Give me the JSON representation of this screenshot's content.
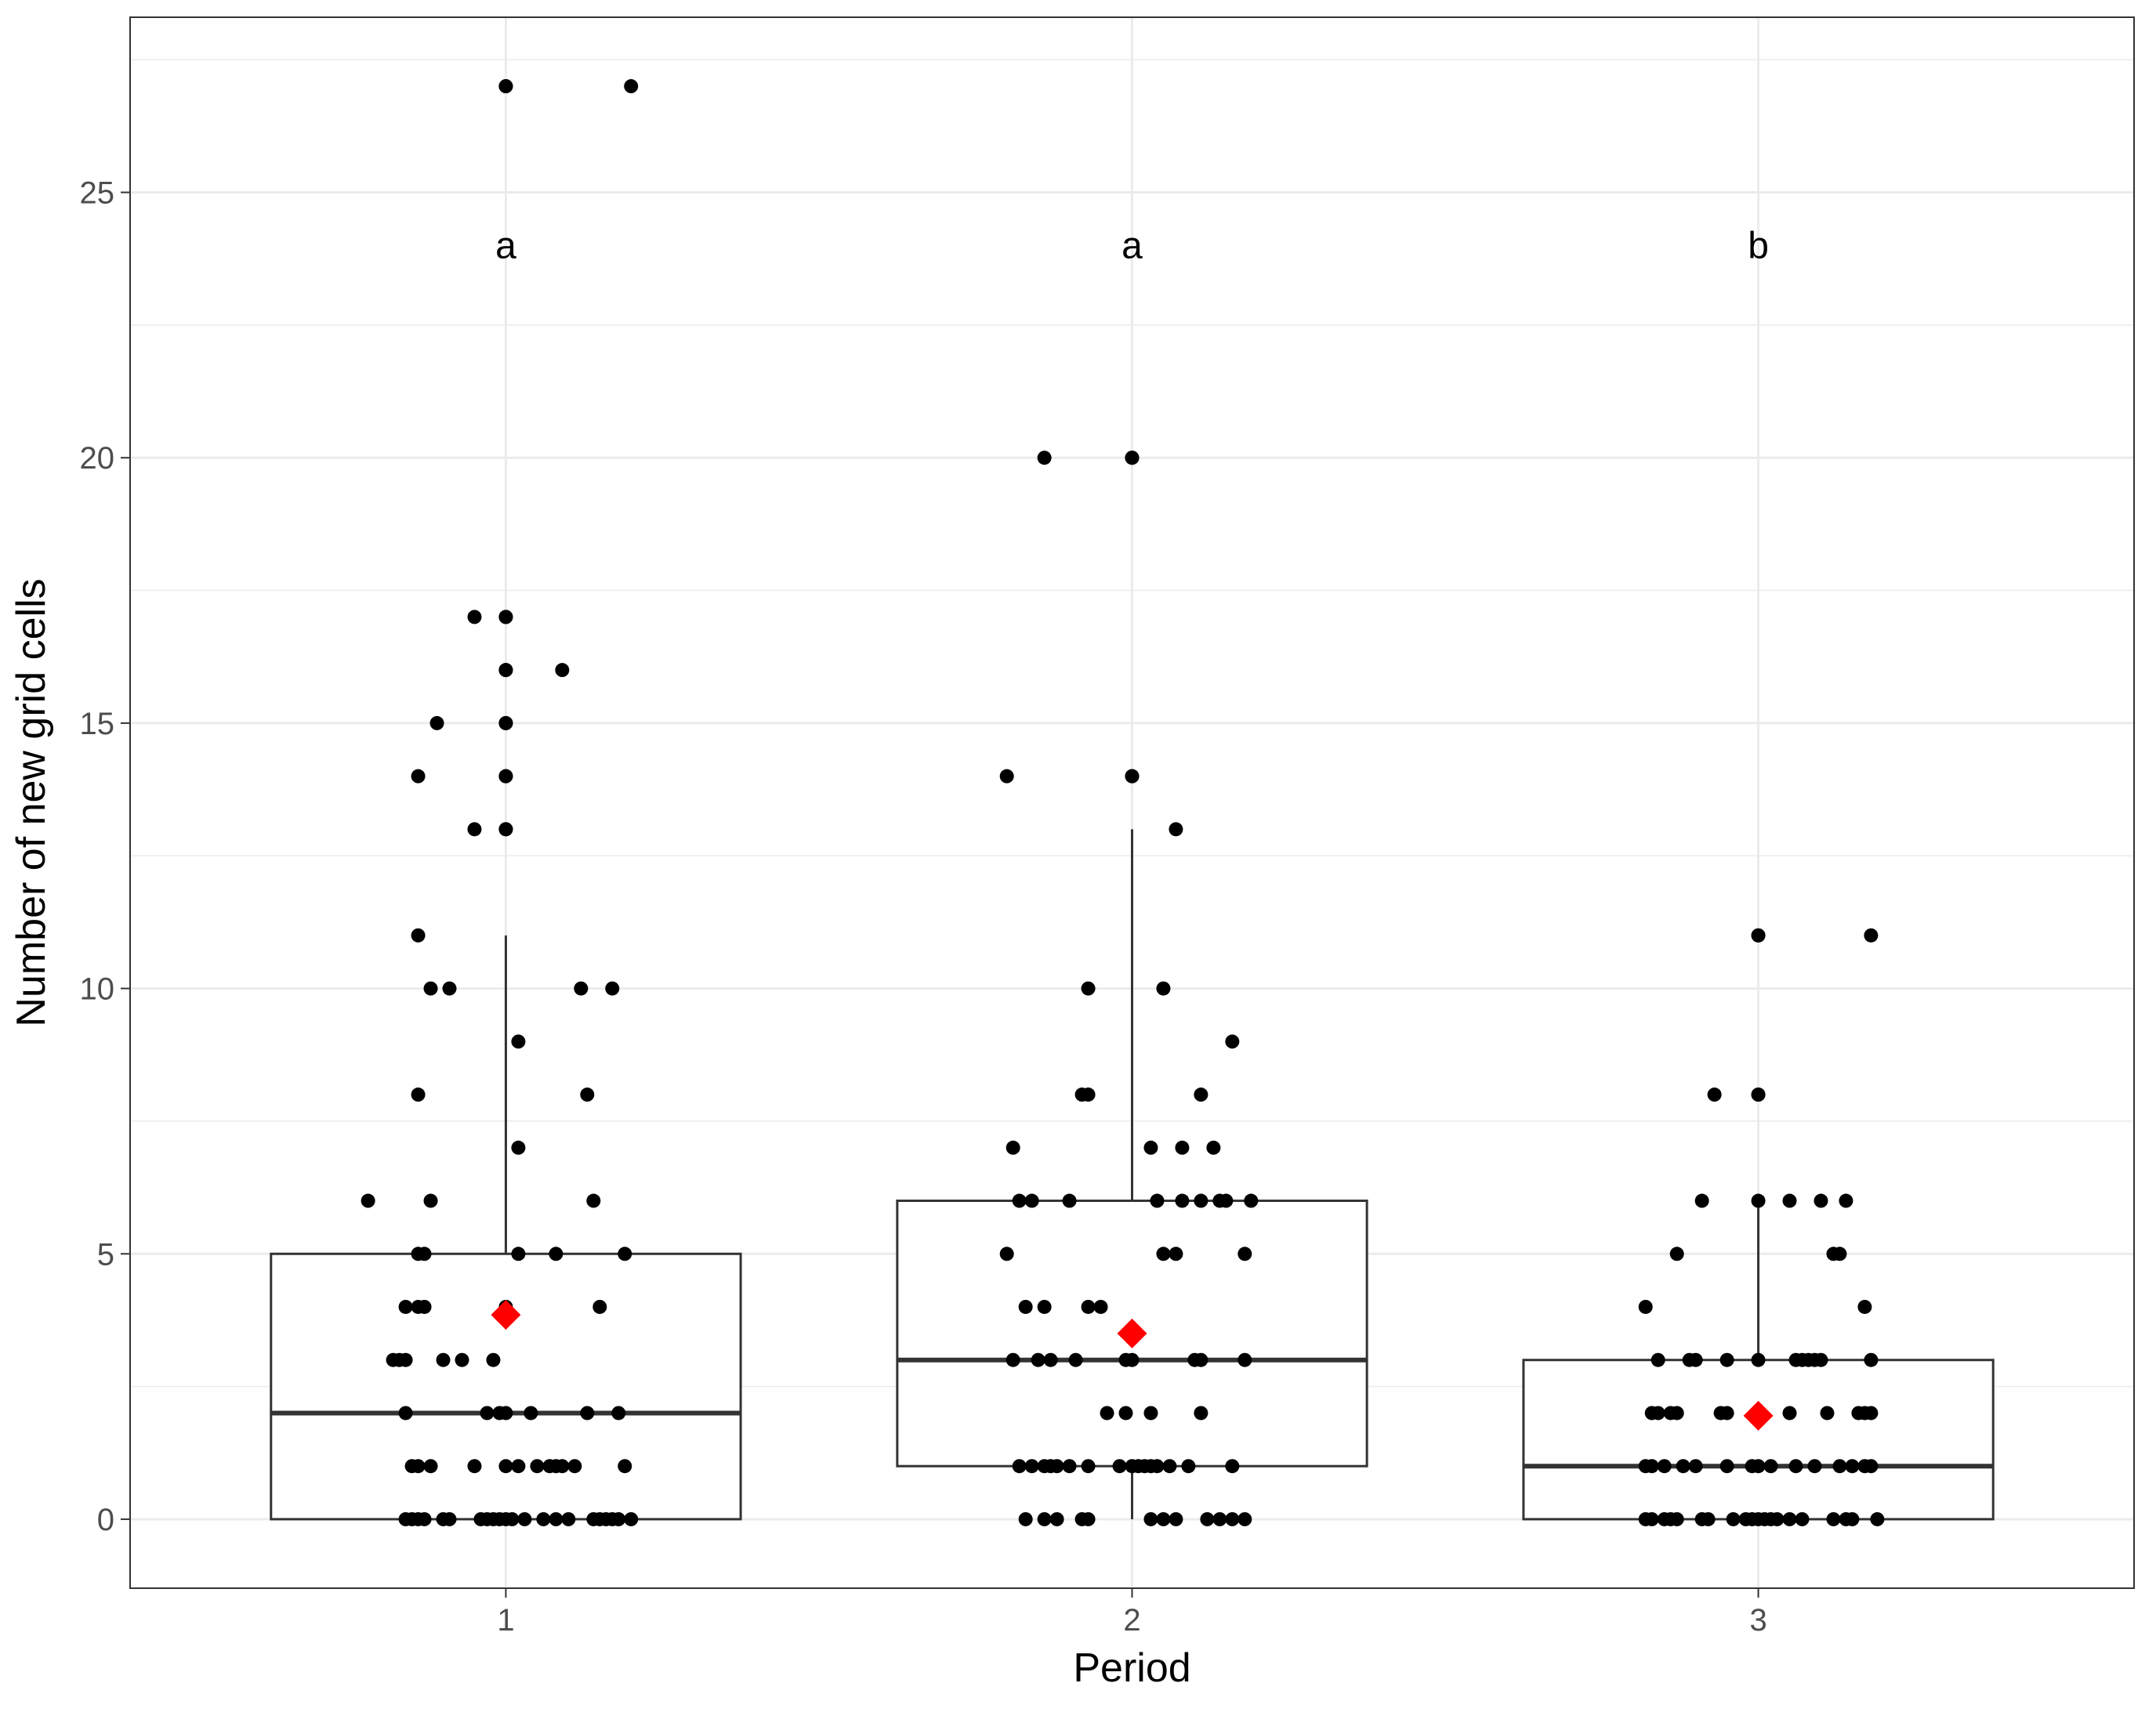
{
  "chart_data": {
    "type": "box",
    "title": "",
    "xlabel": "Period",
    "ylabel": "Number of new grid cells",
    "categories": [
      "1",
      "2",
      "3"
    ],
    "y_ticks": [
      0,
      5,
      10,
      15,
      20,
      25
    ],
    "ylim": [
      -1.3,
      28.3
    ],
    "grid": true,
    "legend": "none",
    "significance_letters": [
      "a",
      "a",
      "b"
    ],
    "letter_y": 24,
    "colors": {
      "mean_marker": "#ff0000",
      "point": "#000000",
      "box_line": "#333333",
      "grid": "#ebebeb"
    },
    "boxes": [
      {
        "category": "1",
        "whisker_low": 0,
        "q1": 0,
        "median": 2,
        "q3": 5,
        "whisker_high": 11,
        "mean": 3.85,
        "outliers": [
          13,
          13,
          14,
          14,
          15,
          15,
          16,
          16,
          17,
          17,
          27,
          27
        ]
      },
      {
        "category": "2",
        "whisker_low": 0,
        "q1": 1,
        "median": 3,
        "q3": 6,
        "whisker_high": 13,
        "mean": 3.5,
        "outliers": [
          14,
          14,
          20,
          20
        ]
      },
      {
        "category": "3",
        "whisker_low": 0,
        "q1": 0,
        "median": 1,
        "q3": 3,
        "whisker_high": 6,
        "mean": 1.95,
        "outliers": [
          8,
          8,
          11,
          11
        ]
      }
    ],
    "points": [
      {
        "x": 1.92,
        "y": 0
      },
      {
        "x": 0.84,
        "y": 0
      },
      {
        "x": 0.85,
        "y": 0
      },
      {
        "x": 0.86,
        "y": 0
      },
      {
        "x": 0.87,
        "y": 0
      },
      {
        "x": 0.9,
        "y": 0
      },
      {
        "x": 0.91,
        "y": 0
      },
      {
        "x": 0.96,
        "y": 0
      },
      {
        "x": 0.97,
        "y": 0
      },
      {
        "x": 0.98,
        "y": 0
      },
      {
        "x": 0.99,
        "y": 0
      },
      {
        "x": 1.0,
        "y": 0
      },
      {
        "x": 1.01,
        "y": 0
      },
      {
        "x": 1.03,
        "y": 0
      },
      {
        "x": 1.06,
        "y": 0
      },
      {
        "x": 1.08,
        "y": 0
      },
      {
        "x": 1.1,
        "y": 0
      },
      {
        "x": 1.14,
        "y": 0
      },
      {
        "x": 1.15,
        "y": 0
      },
      {
        "x": 1.16,
        "y": 0
      },
      {
        "x": 1.17,
        "y": 0
      },
      {
        "x": 1.18,
        "y": 0
      },
      {
        "x": 1.2,
        "y": 0
      },
      {
        "x": 0.85,
        "y": 1
      },
      {
        "x": 0.86,
        "y": 1
      },
      {
        "x": 0.88,
        "y": 1
      },
      {
        "x": 0.95,
        "y": 1
      },
      {
        "x": 1.0,
        "y": 1
      },
      {
        "x": 1.02,
        "y": 1
      },
      {
        "x": 1.05,
        "y": 1
      },
      {
        "x": 1.07,
        "y": 1
      },
      {
        "x": 1.08,
        "y": 1
      },
      {
        "x": 1.09,
        "y": 1
      },
      {
        "x": 1.11,
        "y": 1
      },
      {
        "x": 1.19,
        "y": 1
      },
      {
        "x": 0.84,
        "y": 2
      },
      {
        "x": 0.97,
        "y": 2
      },
      {
        "x": 0.99,
        "y": 2
      },
      {
        "x": 1.0,
        "y": 2
      },
      {
        "x": 1.04,
        "y": 2
      },
      {
        "x": 1.13,
        "y": 2
      },
      {
        "x": 1.18,
        "y": 2
      },
      {
        "x": 0.82,
        "y": 3
      },
      {
        "x": 0.83,
        "y": 3
      },
      {
        "x": 0.84,
        "y": 3
      },
      {
        "x": 0.9,
        "y": 3
      },
      {
        "x": 0.93,
        "y": 3
      },
      {
        "x": 0.98,
        "y": 3
      },
      {
        "x": 0.84,
        "y": 4
      },
      {
        "x": 0.86,
        "y": 4
      },
      {
        "x": 0.87,
        "y": 4
      },
      {
        "x": 1.0,
        "y": 4
      },
      {
        "x": 1.15,
        "y": 4
      },
      {
        "x": 0.86,
        "y": 5
      },
      {
        "x": 0.87,
        "y": 5
      },
      {
        "x": 1.02,
        "y": 5
      },
      {
        "x": 1.08,
        "y": 5
      },
      {
        "x": 1.19,
        "y": 5
      },
      {
        "x": 0.78,
        "y": 6
      },
      {
        "x": 0.88,
        "y": 6
      },
      {
        "x": 1.14,
        "y": 6
      },
      {
        "x": 1.02,
        "y": 7
      },
      {
        "x": 0.86,
        "y": 8
      },
      {
        "x": 1.13,
        "y": 8
      },
      {
        "x": 1.02,
        "y": 9
      },
      {
        "x": 0.88,
        "y": 10
      },
      {
        "x": 0.91,
        "y": 10
      },
      {
        "x": 1.12,
        "y": 10
      },
      {
        "x": 1.17,
        "y": 10
      },
      {
        "x": 0.86,
        "y": 11
      },
      {
        "x": 1.83,
        "y": 0
      },
      {
        "x": 1.86,
        "y": 0
      },
      {
        "x": 1.88,
        "y": 0
      },
      {
        "x": 1.93,
        "y": 0
      },
      {
        "x": 2.03,
        "y": 0
      },
      {
        "x": 2.05,
        "y": 0
      },
      {
        "x": 2.07,
        "y": 0
      },
      {
        "x": 2.12,
        "y": 0
      },
      {
        "x": 2.14,
        "y": 0
      },
      {
        "x": 2.16,
        "y": 0
      },
      {
        "x": 2.18,
        "y": 0
      },
      {
        "x": 1.82,
        "y": 1
      },
      {
        "x": 1.84,
        "y": 1
      },
      {
        "x": 1.86,
        "y": 1
      },
      {
        "x": 1.87,
        "y": 1
      },
      {
        "x": 1.88,
        "y": 1
      },
      {
        "x": 1.9,
        "y": 1
      },
      {
        "x": 1.93,
        "y": 1
      },
      {
        "x": 1.98,
        "y": 1
      },
      {
        "x": 2.0,
        "y": 1
      },
      {
        "x": 2.01,
        "y": 1
      },
      {
        "x": 2.02,
        "y": 1
      },
      {
        "x": 2.03,
        "y": 1
      },
      {
        "x": 2.04,
        "y": 1
      },
      {
        "x": 2.06,
        "y": 1
      },
      {
        "x": 2.09,
        "y": 1
      },
      {
        "x": 2.16,
        "y": 1
      },
      {
        "x": 1.96,
        "y": 2
      },
      {
        "x": 1.99,
        "y": 2
      },
      {
        "x": 2.03,
        "y": 2
      },
      {
        "x": 2.11,
        "y": 2
      },
      {
        "x": 1.81,
        "y": 3
      },
      {
        "x": 1.85,
        "y": 3
      },
      {
        "x": 1.87,
        "y": 3
      },
      {
        "x": 1.91,
        "y": 3
      },
      {
        "x": 1.99,
        "y": 3
      },
      {
        "x": 2.0,
        "y": 3
      },
      {
        "x": 2.1,
        "y": 3
      },
      {
        "x": 2.11,
        "y": 3
      },
      {
        "x": 2.18,
        "y": 3
      },
      {
        "x": 1.83,
        "y": 4
      },
      {
        "x": 1.86,
        "y": 4
      },
      {
        "x": 1.93,
        "y": 4
      },
      {
        "x": 1.95,
        "y": 4
      },
      {
        "x": 1.8,
        "y": 5
      },
      {
        "x": 2.05,
        "y": 5
      },
      {
        "x": 2.07,
        "y": 5
      },
      {
        "x": 2.18,
        "y": 5
      },
      {
        "x": 1.82,
        "y": 6
      },
      {
        "x": 1.84,
        "y": 6
      },
      {
        "x": 1.9,
        "y": 6
      },
      {
        "x": 2.04,
        "y": 6
      },
      {
        "x": 2.08,
        "y": 6
      },
      {
        "x": 2.11,
        "y": 6
      },
      {
        "x": 2.14,
        "y": 6
      },
      {
        "x": 2.15,
        "y": 6
      },
      {
        "x": 2.19,
        "y": 6
      },
      {
        "x": 1.81,
        "y": 7
      },
      {
        "x": 2.03,
        "y": 7
      },
      {
        "x": 2.08,
        "y": 7
      },
      {
        "x": 2.13,
        "y": 7
      },
      {
        "x": 1.92,
        "y": 8
      },
      {
        "x": 1.93,
        "y": 8
      },
      {
        "x": 2.11,
        "y": 8
      },
      {
        "x": 2.16,
        "y": 9
      },
      {
        "x": 1.93,
        "y": 10
      },
      {
        "x": 2.05,
        "y": 10
      },
      {
        "x": 2.07,
        "y": 13
      },
      {
        "x": 1.8,
        "y": 14
      },
      {
        "x": 1.86,
        "y": 20
      },
      {
        "x": 2.82,
        "y": 0
      },
      {
        "x": 2.83,
        "y": 0
      },
      {
        "x": 2.85,
        "y": 0
      },
      {
        "x": 2.86,
        "y": 0
      },
      {
        "x": 2.87,
        "y": 0
      },
      {
        "x": 2.91,
        "y": 0
      },
      {
        "x": 2.92,
        "y": 0
      },
      {
        "x": 2.96,
        "y": 0
      },
      {
        "x": 2.98,
        "y": 0
      },
      {
        "x": 2.99,
        "y": 0
      },
      {
        "x": 3.0,
        "y": 0
      },
      {
        "x": 3.01,
        "y": 0
      },
      {
        "x": 3.02,
        "y": 0
      },
      {
        "x": 3.03,
        "y": 0
      },
      {
        "x": 3.05,
        "y": 0
      },
      {
        "x": 3.07,
        "y": 0
      },
      {
        "x": 3.12,
        "y": 0
      },
      {
        "x": 3.14,
        "y": 0
      },
      {
        "x": 3.15,
        "y": 0
      },
      {
        "x": 3.19,
        "y": 0
      },
      {
        "x": 2.82,
        "y": 1
      },
      {
        "x": 2.83,
        "y": 1
      },
      {
        "x": 2.85,
        "y": 1
      },
      {
        "x": 2.88,
        "y": 1
      },
      {
        "x": 2.9,
        "y": 1
      },
      {
        "x": 2.95,
        "y": 1
      },
      {
        "x": 2.99,
        "y": 1
      },
      {
        "x": 3.0,
        "y": 1
      },
      {
        "x": 3.02,
        "y": 1
      },
      {
        "x": 3.06,
        "y": 1
      },
      {
        "x": 3.09,
        "y": 1
      },
      {
        "x": 3.13,
        "y": 1
      },
      {
        "x": 3.15,
        "y": 1
      },
      {
        "x": 3.17,
        "y": 1
      },
      {
        "x": 3.18,
        "y": 1
      },
      {
        "x": 2.83,
        "y": 2
      },
      {
        "x": 2.84,
        "y": 2
      },
      {
        "x": 2.86,
        "y": 2
      },
      {
        "x": 2.87,
        "y": 2
      },
      {
        "x": 2.94,
        "y": 2
      },
      {
        "x": 2.95,
        "y": 2
      },
      {
        "x": 3.05,
        "y": 2
      },
      {
        "x": 3.11,
        "y": 2
      },
      {
        "x": 3.16,
        "y": 2
      },
      {
        "x": 3.17,
        "y": 2
      },
      {
        "x": 3.18,
        "y": 2
      },
      {
        "x": 2.84,
        "y": 3
      },
      {
        "x": 2.89,
        "y": 3
      },
      {
        "x": 2.9,
        "y": 3
      },
      {
        "x": 2.95,
        "y": 3
      },
      {
        "x": 3.0,
        "y": 3
      },
      {
        "x": 3.06,
        "y": 3
      },
      {
        "x": 3.07,
        "y": 3
      },
      {
        "x": 3.08,
        "y": 3
      },
      {
        "x": 3.09,
        "y": 3
      },
      {
        "x": 3.1,
        "y": 3
      },
      {
        "x": 3.18,
        "y": 3
      },
      {
        "x": 2.82,
        "y": 4
      },
      {
        "x": 3.17,
        "y": 4
      },
      {
        "x": 2.87,
        "y": 5
      },
      {
        "x": 3.12,
        "y": 5
      },
      {
        "x": 3.13,
        "y": 5
      },
      {
        "x": 2.91,
        "y": 6
      },
      {
        "x": 3.0,
        "y": 6
      },
      {
        "x": 3.05,
        "y": 6
      },
      {
        "x": 3.1,
        "y": 6
      },
      {
        "x": 3.14,
        "y": 6
      },
      {
        "x": 2.93,
        "y": 8
      },
      {
        "x": 3.0,
        "y": 8
      },
      {
        "x": 3.0,
        "y": 11
      },
      {
        "x": 3.18,
        "y": 11
      },
      {
        "x": 1.2,
        "y": 27
      },
      {
        "x": 1.0,
        "y": 27
      },
      {
        "x": 0.95,
        "y": 17
      },
      {
        "x": 1.0,
        "y": 17
      },
      {
        "x": 1.0,
        "y": 16
      },
      {
        "x": 1.09,
        "y": 16
      },
      {
        "x": 0.89,
        "y": 15
      },
      {
        "x": 1.0,
        "y": 15
      },
      {
        "x": 0.86,
        "y": 14
      },
      {
        "x": 1.0,
        "y": 14
      },
      {
        "x": 0.95,
        "y": 13
      },
      {
        "x": 1.0,
        "y": 13
      },
      {
        "x": 2.0,
        "y": 20
      },
      {
        "x": 2.0,
        "y": 14
      }
    ]
  }
}
